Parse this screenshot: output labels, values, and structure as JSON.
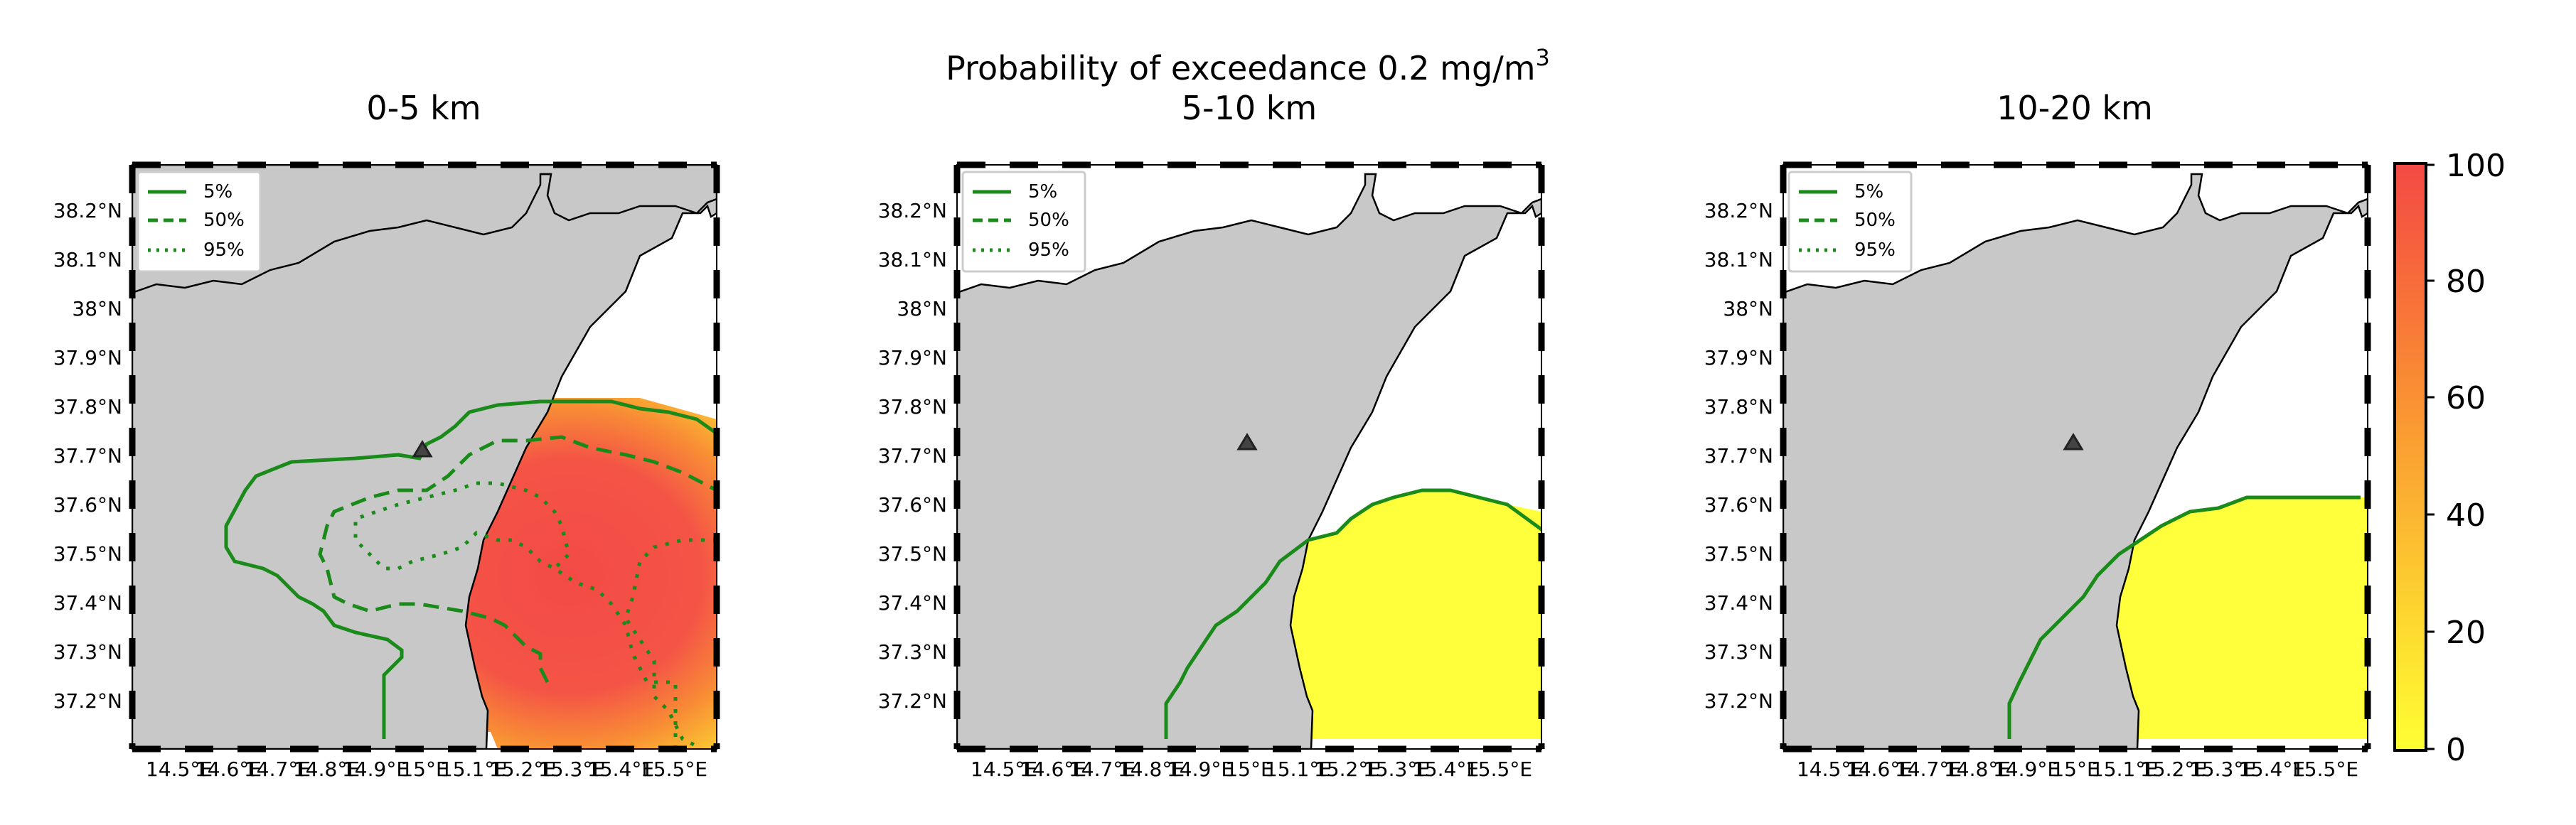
{
  "figure": {
    "suptitle_line1": "Probability of exceedance 0.2 mg/m",
    "suptitle_unit_exp": "3",
    "colorbar": {
      "ticks": [
        "0",
        "20",
        "40",
        "60",
        "80",
        "100"
      ],
      "colors": [
        "#ffff33",
        "#fddc2f",
        "#fbb631",
        "#f99133",
        "#f76b3a",
        "#f34a45"
      ]
    },
    "land_color": "#c8c8c8",
    "contour_color": "#1a8a1a",
    "legend_items": [
      {
        "label": "5%",
        "style": "solid"
      },
      {
        "label": "50%",
        "style": "dashed"
      },
      {
        "label": "95%",
        "style": "dotted"
      }
    ],
    "lat_labels": [
      "38.2°N",
      "38.1°N",
      "38°N",
      "37.9°N",
      "37.8°N",
      "37.7°N",
      "37.6°N",
      "37.5°N",
      "37.4°N",
      "37.3°N",
      "37.2°N"
    ],
    "lon_labels": [
      "14.5°E",
      "14.6°E",
      "14.7°E",
      "14.8°E",
      "14.9°E",
      "15°E",
      "15.1°E",
      "15.2°E",
      "15.3°E",
      "15.4°E",
      "15.5°E"
    ]
  },
  "panels": [
    {
      "title": "0-5 km"
    },
    {
      "title": "5-10 km"
    },
    {
      "title": "10-20 km"
    }
  ]
}
